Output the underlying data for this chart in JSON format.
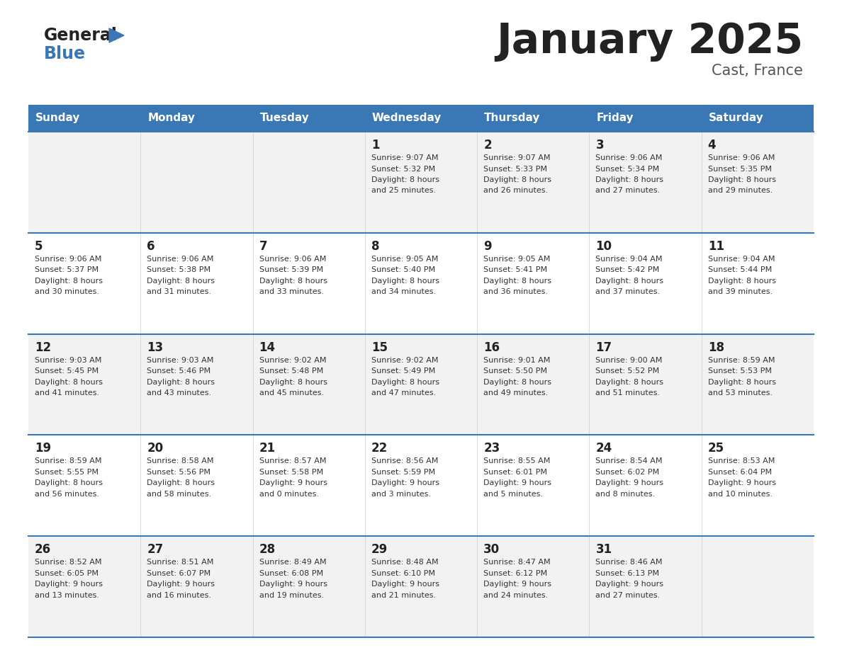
{
  "title": "January 2025",
  "subtitle": "Cast, France",
  "header_color": "#3a77b5",
  "header_text_color": "#ffffff",
  "day_names": [
    "Sunday",
    "Monday",
    "Tuesday",
    "Wednesday",
    "Thursday",
    "Friday",
    "Saturday"
  ],
  "row_bg_even": "#f2f2f2",
  "row_bg_odd": "#ffffff",
  "border_color": "#3a77b5",
  "text_color": "#333333",
  "day_number_color": "#222222",
  "calendar": [
    [
      {
        "day": "",
        "sunrise": "",
        "sunset": "",
        "daylight": ""
      },
      {
        "day": "",
        "sunrise": "",
        "sunset": "",
        "daylight": ""
      },
      {
        "day": "",
        "sunrise": "",
        "sunset": "",
        "daylight": ""
      },
      {
        "day": "1",
        "sunrise": "9:07 AM",
        "sunset": "5:32 PM",
        "daylight": "8 hours\nand 25 minutes."
      },
      {
        "day": "2",
        "sunrise": "9:07 AM",
        "sunset": "5:33 PM",
        "daylight": "8 hours\nand 26 minutes."
      },
      {
        "day": "3",
        "sunrise": "9:06 AM",
        "sunset": "5:34 PM",
        "daylight": "8 hours\nand 27 minutes."
      },
      {
        "day": "4",
        "sunrise": "9:06 AM",
        "sunset": "5:35 PM",
        "daylight": "8 hours\nand 29 minutes."
      }
    ],
    [
      {
        "day": "5",
        "sunrise": "9:06 AM",
        "sunset": "5:37 PM",
        "daylight": "8 hours\nand 30 minutes."
      },
      {
        "day": "6",
        "sunrise": "9:06 AM",
        "sunset": "5:38 PM",
        "daylight": "8 hours\nand 31 minutes."
      },
      {
        "day": "7",
        "sunrise": "9:06 AM",
        "sunset": "5:39 PM",
        "daylight": "8 hours\nand 33 minutes."
      },
      {
        "day": "8",
        "sunrise": "9:05 AM",
        "sunset": "5:40 PM",
        "daylight": "8 hours\nand 34 minutes."
      },
      {
        "day": "9",
        "sunrise": "9:05 AM",
        "sunset": "5:41 PM",
        "daylight": "8 hours\nand 36 minutes."
      },
      {
        "day": "10",
        "sunrise": "9:04 AM",
        "sunset": "5:42 PM",
        "daylight": "8 hours\nand 37 minutes."
      },
      {
        "day": "11",
        "sunrise": "9:04 AM",
        "sunset": "5:44 PM",
        "daylight": "8 hours\nand 39 minutes."
      }
    ],
    [
      {
        "day": "12",
        "sunrise": "9:03 AM",
        "sunset": "5:45 PM",
        "daylight": "8 hours\nand 41 minutes."
      },
      {
        "day": "13",
        "sunrise": "9:03 AM",
        "sunset": "5:46 PM",
        "daylight": "8 hours\nand 43 minutes."
      },
      {
        "day": "14",
        "sunrise": "9:02 AM",
        "sunset": "5:48 PM",
        "daylight": "8 hours\nand 45 minutes."
      },
      {
        "day": "15",
        "sunrise": "9:02 AM",
        "sunset": "5:49 PM",
        "daylight": "8 hours\nand 47 minutes."
      },
      {
        "day": "16",
        "sunrise": "9:01 AM",
        "sunset": "5:50 PM",
        "daylight": "8 hours\nand 49 minutes."
      },
      {
        "day": "17",
        "sunrise": "9:00 AM",
        "sunset": "5:52 PM",
        "daylight": "8 hours\nand 51 minutes."
      },
      {
        "day": "18",
        "sunrise": "8:59 AM",
        "sunset": "5:53 PM",
        "daylight": "8 hours\nand 53 minutes."
      }
    ],
    [
      {
        "day": "19",
        "sunrise": "8:59 AM",
        "sunset": "5:55 PM",
        "daylight": "8 hours\nand 56 minutes."
      },
      {
        "day": "20",
        "sunrise": "8:58 AM",
        "sunset": "5:56 PM",
        "daylight": "8 hours\nand 58 minutes."
      },
      {
        "day": "21",
        "sunrise": "8:57 AM",
        "sunset": "5:58 PM",
        "daylight": "9 hours\nand 0 minutes."
      },
      {
        "day": "22",
        "sunrise": "8:56 AM",
        "sunset": "5:59 PM",
        "daylight": "9 hours\nand 3 minutes."
      },
      {
        "day": "23",
        "sunrise": "8:55 AM",
        "sunset": "6:01 PM",
        "daylight": "9 hours\nand 5 minutes."
      },
      {
        "day": "24",
        "sunrise": "8:54 AM",
        "sunset": "6:02 PM",
        "daylight": "9 hours\nand 8 minutes."
      },
      {
        "day": "25",
        "sunrise": "8:53 AM",
        "sunset": "6:04 PM",
        "daylight": "9 hours\nand 10 minutes."
      }
    ],
    [
      {
        "day": "26",
        "sunrise": "8:52 AM",
        "sunset": "6:05 PM",
        "daylight": "9 hours\nand 13 minutes."
      },
      {
        "day": "27",
        "sunrise": "8:51 AM",
        "sunset": "6:07 PM",
        "daylight": "9 hours\nand 16 minutes."
      },
      {
        "day": "28",
        "sunrise": "8:49 AM",
        "sunset": "6:08 PM",
        "daylight": "9 hours\nand 19 minutes."
      },
      {
        "day": "29",
        "sunrise": "8:48 AM",
        "sunset": "6:10 PM",
        "daylight": "9 hours\nand 21 minutes."
      },
      {
        "day": "30",
        "sunrise": "8:47 AM",
        "sunset": "6:12 PM",
        "daylight": "9 hours\nand 24 minutes."
      },
      {
        "day": "31",
        "sunrise": "8:46 AM",
        "sunset": "6:13 PM",
        "daylight": "9 hours\nand 27 minutes."
      },
      {
        "day": "",
        "sunrise": "",
        "sunset": "",
        "daylight": ""
      }
    ]
  ]
}
